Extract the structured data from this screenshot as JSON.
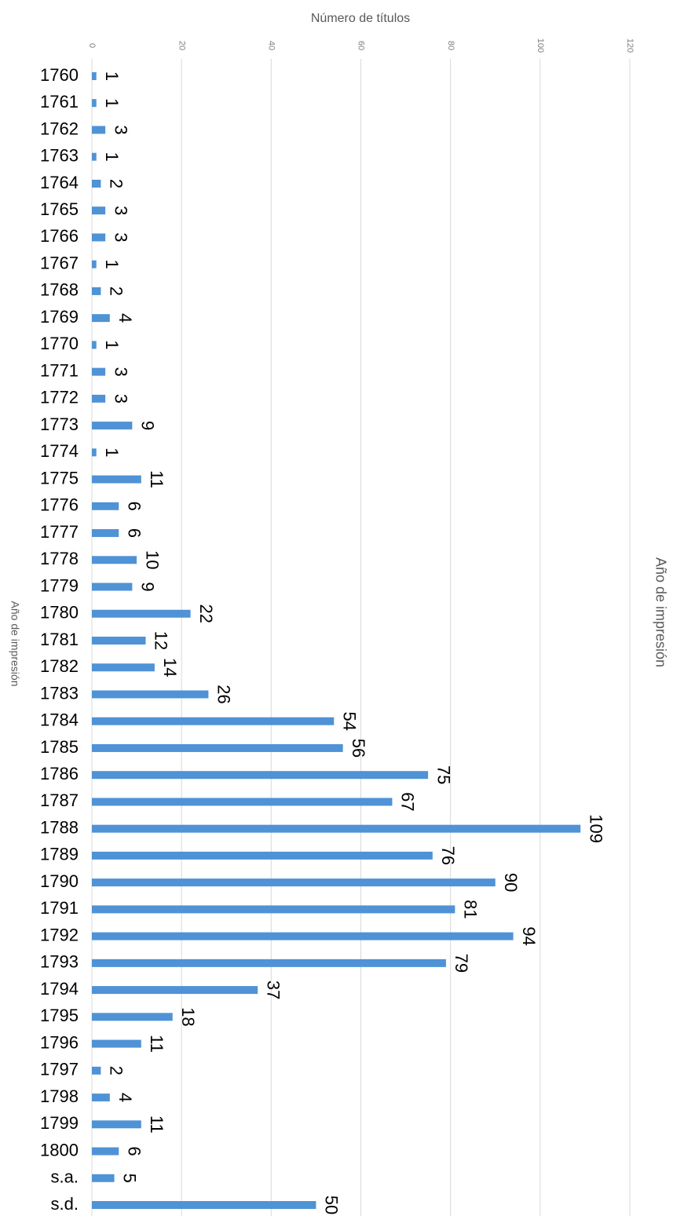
{
  "chart_data": {
    "type": "bar",
    "orientation": "horizontal",
    "title": "Año de impresión",
    "x_label": "Número de títulos",
    "y_label": "Año de impresión",
    "categories": [
      "1760",
      "1761",
      "1762",
      "1763",
      "1764",
      "1765",
      "1766",
      "1767",
      "1768",
      "1769",
      "1770",
      "1771",
      "1772",
      "1773",
      "1774",
      "1775",
      "1776",
      "1777",
      "1778",
      "1779",
      "1780",
      "1781",
      "1782",
      "1783",
      "1784",
      "1785",
      "1786",
      "1787",
      "1788",
      "1789",
      "1790",
      "1791",
      "1792",
      "1793",
      "1794",
      "1795",
      "1796",
      "1797",
      "1798",
      "1799",
      "1800",
      "s.a.",
      "s.d."
    ],
    "values": [
      1,
      1,
      3,
      1,
      2,
      3,
      3,
      1,
      2,
      4,
      1,
      3,
      3,
      9,
      1,
      11,
      6,
      6,
      10,
      9,
      22,
      12,
      14,
      26,
      54,
      56,
      75,
      67,
      109,
      76,
      90,
      81,
      94,
      79,
      37,
      18,
      11,
      2,
      4,
      11,
      6,
      5,
      50
    ],
    "color": "#4f93d6",
    "xlim": [
      0,
      120
    ],
    "xticks": [
      0,
      20,
      40,
      60,
      80,
      100,
      120
    ],
    "grid": true
  }
}
